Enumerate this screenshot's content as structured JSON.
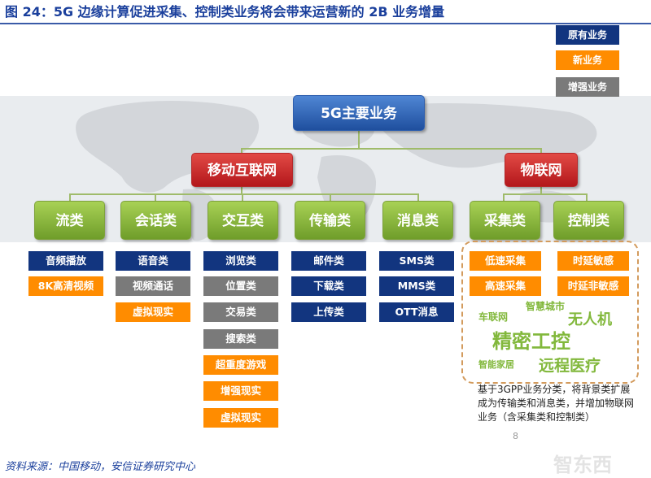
{
  "title": "图 24：5G 边缘计算促进采集、控制类业务将会带来运营新的 2B 业务增量",
  "legend": {
    "existing": "原有业务",
    "new": "新业务",
    "enhanced": "增强业务"
  },
  "root": "5G主要业务",
  "branches": {
    "mobile": "移动互联网",
    "iot": "物联网"
  },
  "categories": {
    "flow": "流类",
    "session": "会话类",
    "interact": "交互类",
    "transfer": "传输类",
    "message": "消息类",
    "collect": "采集类",
    "control": "控制类"
  },
  "items": {
    "flow": [
      "音频播放",
      "8K高清视频"
    ],
    "session": [
      "语音类",
      "视频通话",
      "虚拟现实"
    ],
    "interact": [
      "浏览类",
      "位置类",
      "交易类",
      "搜索类",
      "超重度游戏",
      "增强现实",
      "虚拟现实"
    ],
    "transfer": [
      "邮件类",
      "下载类",
      "上传类"
    ],
    "message": [
      "SMS类",
      "MMS类",
      "OTT消息"
    ],
    "iot": [
      "低速采集",
      "时延敏感",
      "高速采集",
      "时延非敏感"
    ]
  },
  "word_cloud": [
    "智慧城市",
    "车联网",
    "无人机",
    "精密工控",
    "智能家居",
    "远程医疗"
  ],
  "note": "基于3GPP业务分类，将背景类扩展成为传输类和消息类，并增加物联网业务（含采集类和控制类）",
  "page_number": "8",
  "watermark": "智东西",
  "source": "资料来源：中国移动，安信证券研究中心",
  "colors": {
    "existing": "#12357f",
    "new": "#ff8c00",
    "enhanced": "#7a7a7a",
    "root": "#2f63b8",
    "branch": "#c62828",
    "category": "#8cbd3f"
  }
}
